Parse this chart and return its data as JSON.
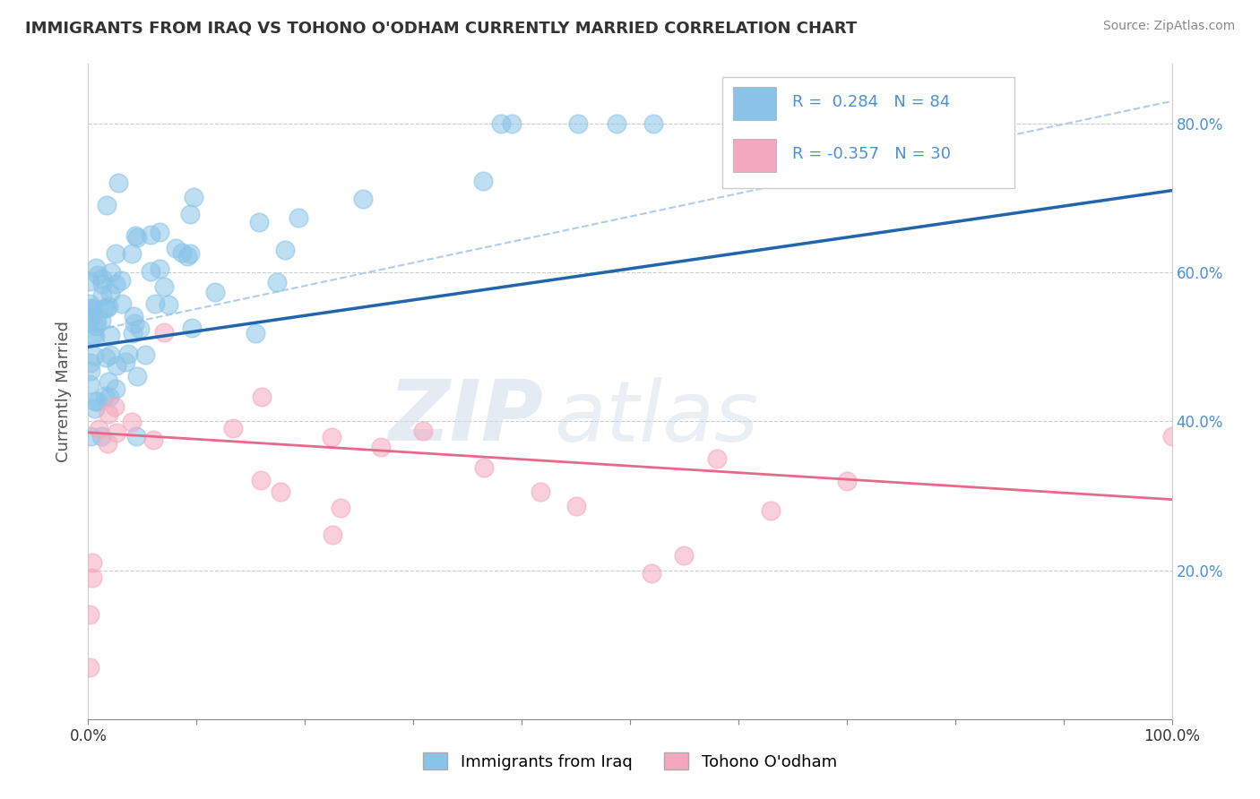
{
  "title": "IMMIGRANTS FROM IRAQ VS TOHONO O'ODHAM CURRENTLY MARRIED CORRELATION CHART",
  "source": "Source: ZipAtlas.com",
  "ylabel": "Currently Married",
  "legend_label1": "Immigrants from Iraq",
  "legend_label2": "Tohono O'odham",
  "r1": 0.284,
  "n1": 84,
  "r2": -0.357,
  "n2": 30,
  "xlim": [
    0.0,
    1.0
  ],
  "ylim": [
    0.0,
    0.88
  ],
  "yticks": [
    0.2,
    0.4,
    0.6,
    0.8
  ],
  "ytick_labels": [
    "20.0%",
    "40.0%",
    "60.0%",
    "80.0%"
  ],
  "xticks": [
    0.0,
    0.1,
    0.2,
    0.3,
    0.4,
    0.5,
    0.6,
    0.7,
    0.8,
    0.9,
    1.0
  ],
  "xtick_labels": [
    "0.0%",
    "",
    "",
    "",
    "",
    "",
    "",
    "",
    "",
    "",
    "100.0%"
  ],
  "color_blue": "#89c4e8",
  "color_pink": "#f4a8be",
  "color_blue_line": "#2166ac",
  "color_pink_line": "#e8688a",
  "color_dashed": "#a8c8e8",
  "background_color": "#ffffff",
  "watermark_zip": "ZIP",
  "watermark_atlas": "atlas",
  "blue_line_x0": 0.0,
  "blue_line_y0": 0.5,
  "blue_line_x1": 1.0,
  "blue_line_y1": 0.71,
  "dashed_line_x0": 0.0,
  "dashed_line_y0": 0.52,
  "dashed_line_x1": 1.0,
  "dashed_line_y1": 0.83,
  "pink_line_x0": 0.0,
  "pink_line_y0": 0.385,
  "pink_line_x1": 1.0,
  "pink_line_y1": 0.295
}
